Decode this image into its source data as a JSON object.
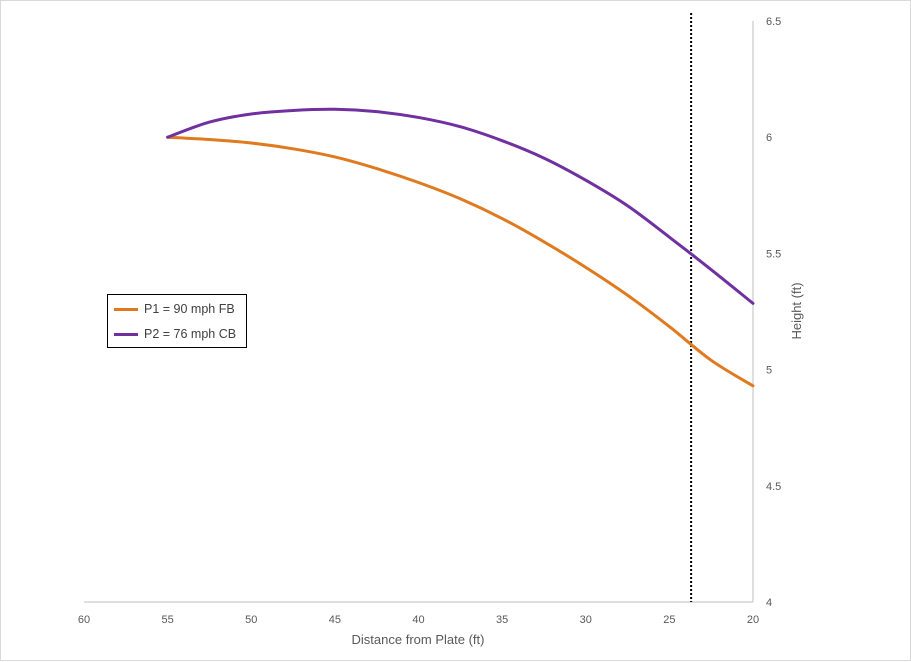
{
  "chart_data": {
    "type": "line",
    "title": "",
    "xlabel": "Distance from Plate (ft)",
    "ylabel": "Height (ft)",
    "xlim": [
      60,
      20
    ],
    "x_reversed": true,
    "ylim": [
      4,
      6.5
    ],
    "y_axis_position": "right",
    "x_ticks": [
      "60",
      "55",
      "50",
      "45",
      "40",
      "35",
      "30",
      "25",
      "20"
    ],
    "y_ticks": [
      "4",
      "4.5",
      "5",
      "5.5",
      "6",
      "6.5"
    ],
    "grid": false,
    "legend_position": "left",
    "reference_line": {
      "orientation": "vertical",
      "x": 23.7,
      "style": "dotted",
      "color": "#000000"
    },
    "series": [
      {
        "name": "P1 = 90 mph FB",
        "color": "#E07A1F",
        "x": [
          55,
          52.5,
          50,
          47.5,
          45,
          42.5,
          40,
          37.5,
          35,
          32.5,
          30,
          27.5,
          25,
          22.5,
          20
        ],
        "y": [
          6.0,
          5.99,
          5.975,
          5.95,
          5.915,
          5.865,
          5.805,
          5.735,
          5.65,
          5.55,
          5.44,
          5.32,
          5.185,
          5.04,
          4.93
        ]
      },
      {
        "name": "P2 = 76 mph CB",
        "color": "#7030A0",
        "x": [
          55,
          52.5,
          50,
          47.5,
          45,
          42.5,
          40,
          37.5,
          35,
          32.5,
          30,
          27.5,
          25,
          22.5,
          20
        ],
        "y": [
          6.0,
          6.065,
          6.1,
          6.115,
          6.12,
          6.11,
          6.085,
          6.045,
          5.985,
          5.91,
          5.815,
          5.705,
          5.57,
          5.43,
          5.285
        ]
      }
    ]
  }
}
